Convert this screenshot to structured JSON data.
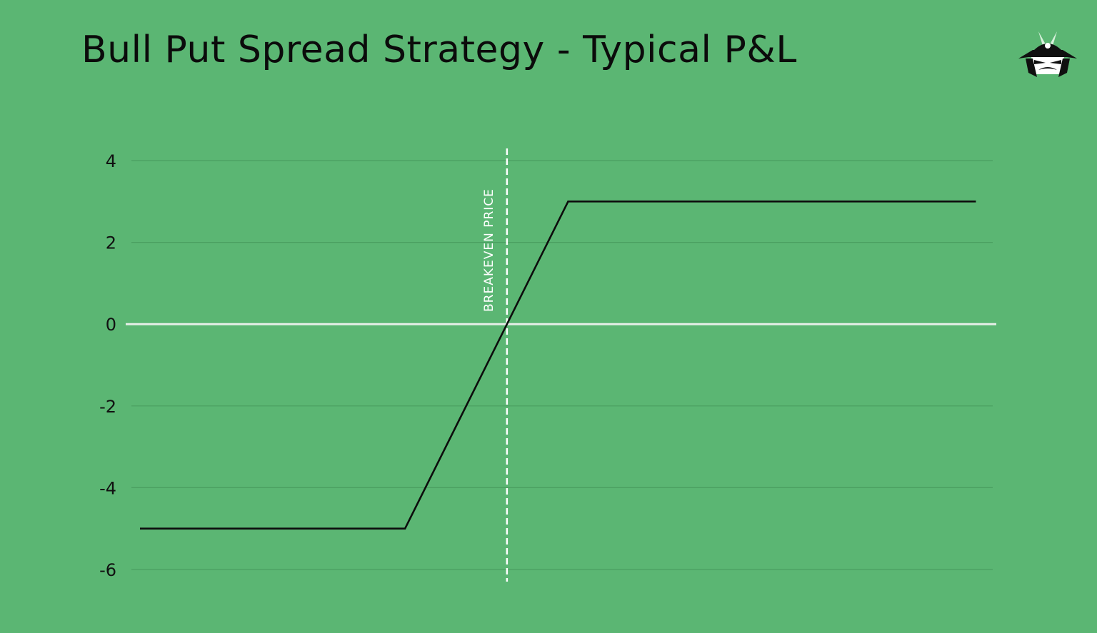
{
  "colors": {
    "background": "#5bb673",
    "gridline": "#4a9e60",
    "zero_line": "#e6efe8",
    "series_line": "#0d0d0d",
    "breakeven_line": "#ffffff",
    "text": "#0b0b0b"
  },
  "logo": {
    "icon": "samurai-helmet-icon"
  },
  "chart_data": {
    "type": "line",
    "title": "Bull Put Spread Strategy - Typical P&L",
    "xlabel": "",
    "ylabel": "",
    "ylim": [
      -6,
      4
    ],
    "yticks": [
      "4",
      "2",
      "0",
      "-2",
      "-4",
      "-6"
    ],
    "grid": true,
    "legend": "none",
    "series": [
      {
        "x": [
          0,
          6.5,
          10.5,
          20.5
        ],
        "values": [
          -5,
          -5,
          3,
          3
        ]
      }
    ],
    "xlim": [
      -0.35,
      21
    ],
    "annotations": [
      {
        "type": "vline",
        "x": 9.0,
        "style": "dashed",
        "label": "BREAKEVEN PRICE"
      }
    ]
  }
}
